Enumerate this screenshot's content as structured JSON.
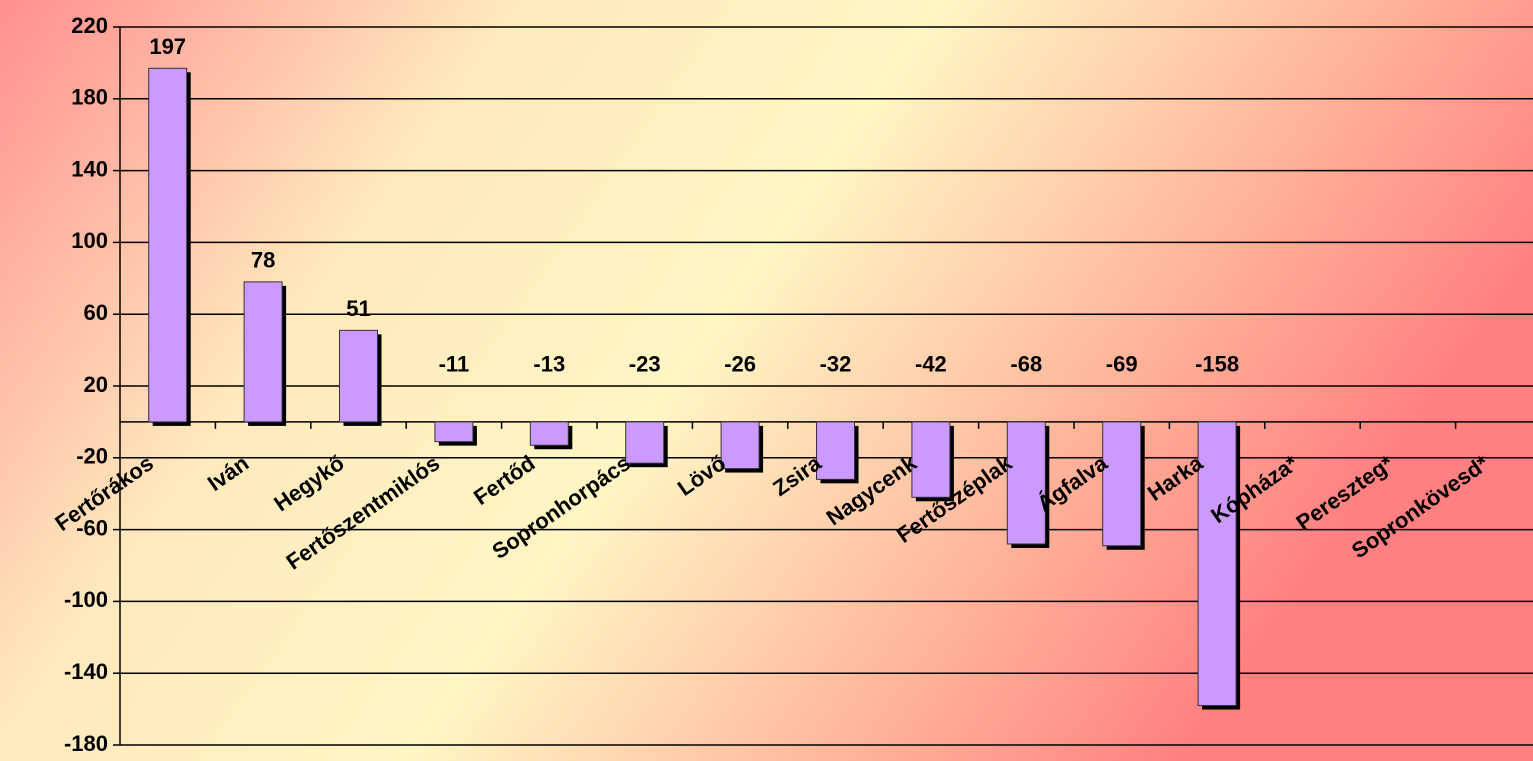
{
  "chart_data": {
    "type": "bar",
    "categories": [
      "Fertőrákos",
      "Iván",
      "Hegykő",
      "Fertőszentmiklós",
      "Fertőd",
      "Sopronhorpács",
      "Lövő",
      "Zsira",
      "Nagycenk",
      "Fertőszéplak",
      "Ágfalva",
      "Harka",
      "Kópháza*",
      "Pereszteg*",
      "Sopronkövesd*"
    ],
    "values": [
      197,
      78,
      51,
      -11,
      -13,
      -23,
      -26,
      -32,
      -42,
      -68,
      -69,
      -158,
      null,
      null,
      null
    ],
    "color": "#cc99ff",
    "ylim": [
      -180,
      220
    ],
    "yticks": [
      -180,
      -140,
      -100,
      -60,
      -20,
      20,
      60,
      100,
      140,
      180,
      220
    ],
    "grid": true
  }
}
